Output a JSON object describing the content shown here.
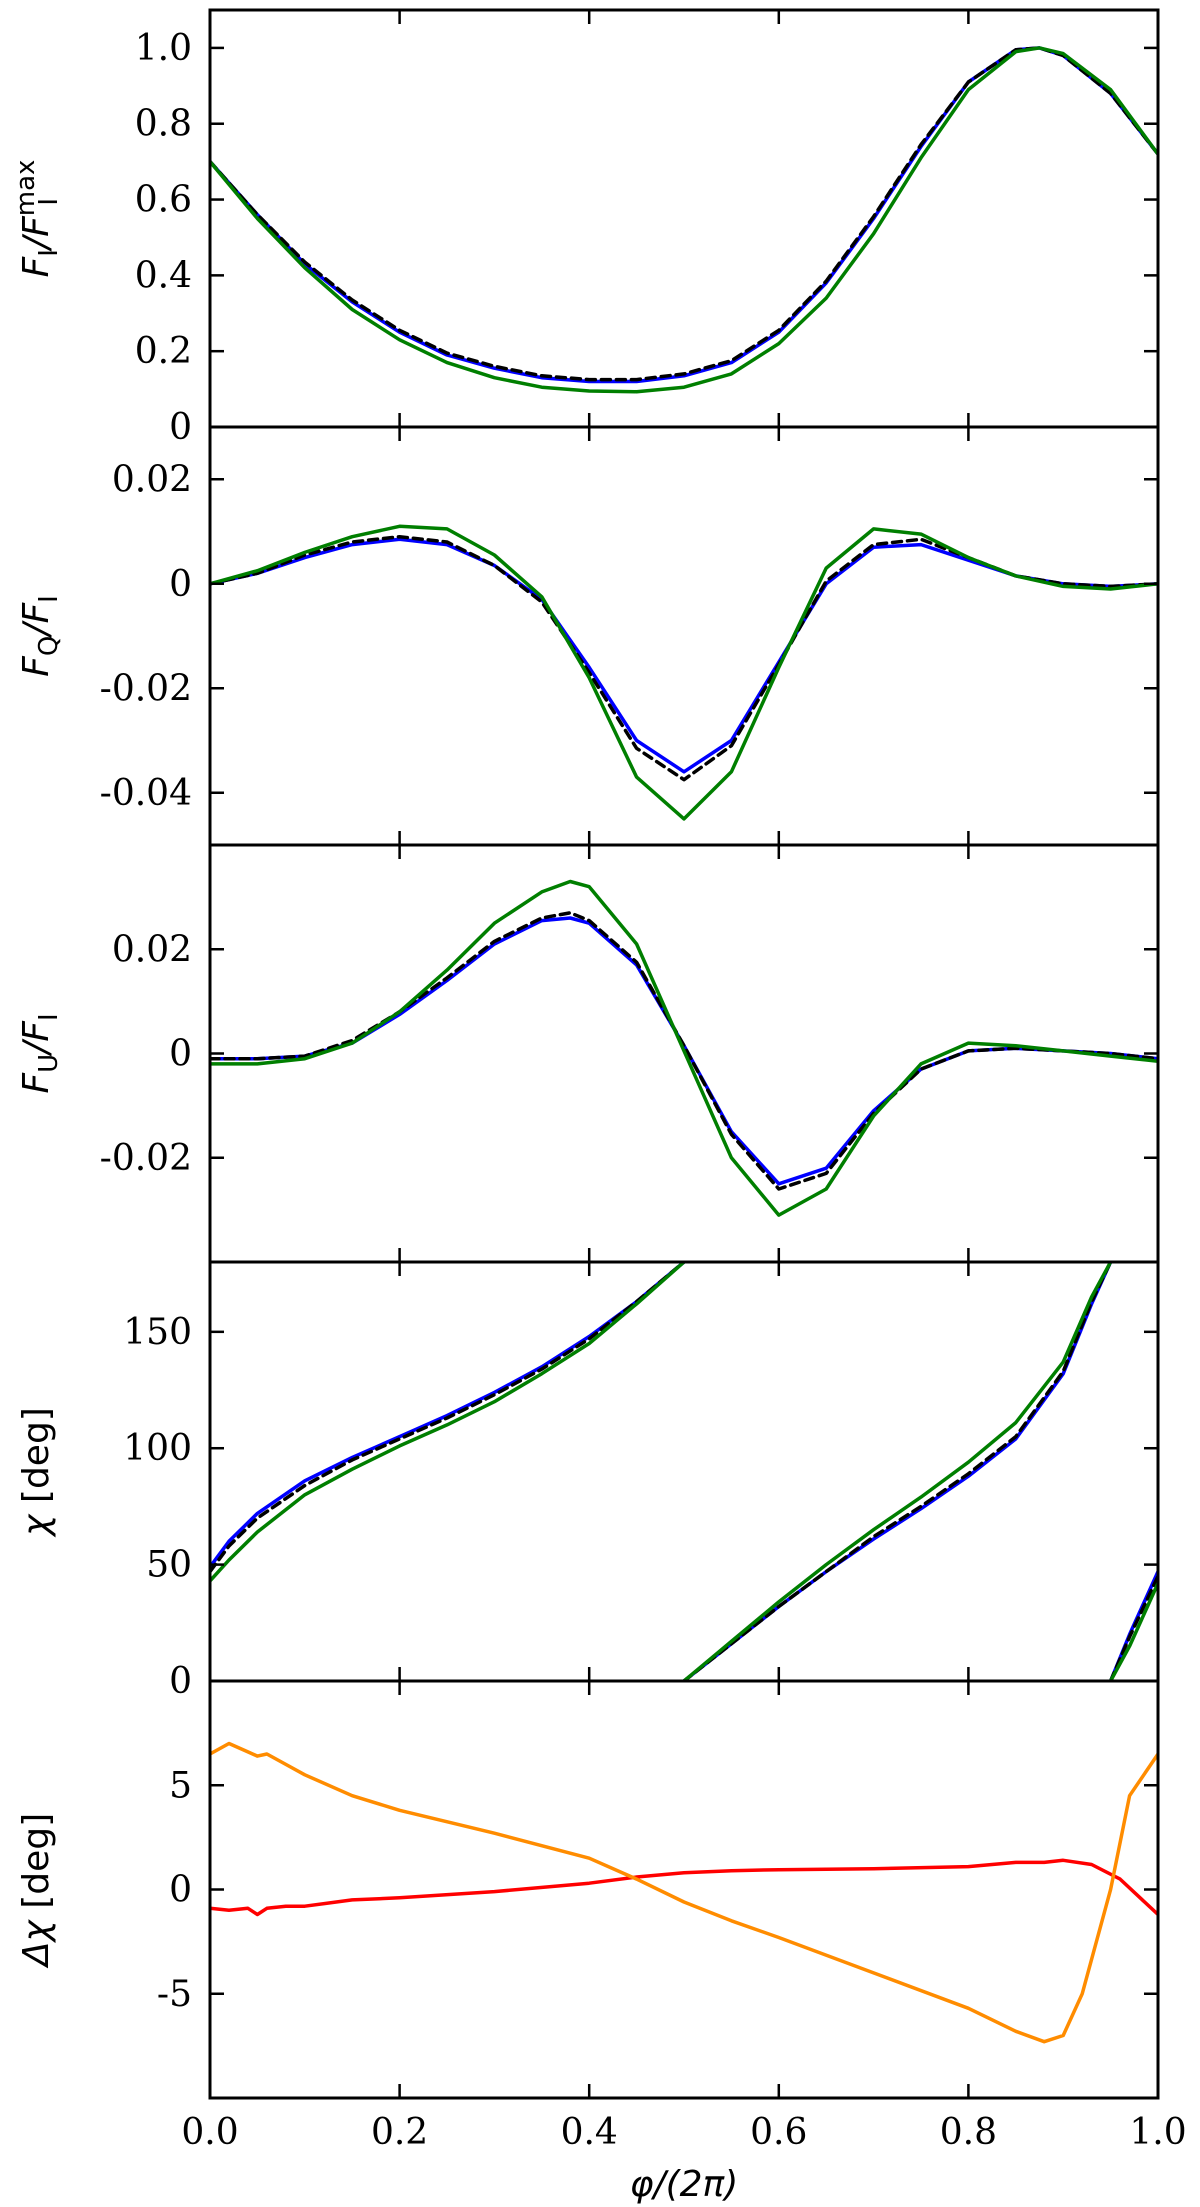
{
  "chart_data": {
    "type": "line",
    "shared_x": {
      "xlabel": "φ/(2π)",
      "xlim": [
        0,
        1
      ],
      "xticks": [
        0.0,
        0.2,
        0.4,
        0.6,
        0.8,
        1.0
      ],
      "xtick_labels": [
        "0.0",
        "0.2",
        "0.4",
        "0.6",
        "0.8",
        "1.0"
      ]
    },
    "panels": [
      {
        "id": "flux",
        "ylabel": {
          "pre": "F",
          "sub": "I",
          "mid": "/F",
          "sub2": "I",
          "sup": "max"
        },
        "ylim": [
          0,
          1.1
        ],
        "yticks": [
          0,
          0.2,
          0.4,
          0.6,
          0.8,
          1.0
        ],
        "ytick_labels": [
          "0",
          "0.2",
          "0.4",
          "0.6",
          "0.8",
          "1.0"
        ],
        "series": [
          {
            "color": "#0000ff",
            "style": "solid",
            "x": [
              0,
              0.05,
              0.1,
              0.15,
              0.2,
              0.25,
              0.3,
              0.35,
              0.4,
              0.45,
              0.5,
              0.55,
              0.6,
              0.65,
              0.7,
              0.75,
              0.8,
              0.85,
              0.875,
              0.9,
              0.95,
              1.0
            ],
            "y": [
              0.7,
              0.56,
              0.43,
              0.33,
              0.25,
              0.19,
              0.155,
              0.13,
              0.12,
              0.12,
              0.135,
              0.17,
              0.25,
              0.38,
              0.55,
              0.74,
              0.91,
              0.995,
              1.0,
              0.98,
              0.88,
              0.72
            ]
          },
          {
            "color": "#000000",
            "style": "dashed",
            "x": [
              0,
              0.05,
              0.1,
              0.15,
              0.2,
              0.25,
              0.3,
              0.35,
              0.4,
              0.45,
              0.5,
              0.55,
              0.6,
              0.65,
              0.7,
              0.75,
              0.8,
              0.85,
              0.875,
              0.9,
              0.95,
              1.0
            ],
            "y": [
              0.7,
              0.56,
              0.435,
              0.335,
              0.255,
              0.195,
              0.16,
              0.135,
              0.125,
              0.125,
              0.14,
              0.175,
              0.255,
              0.385,
              0.555,
              0.745,
              0.91,
              0.995,
              1.0,
              0.98,
              0.88,
              0.72
            ]
          },
          {
            "color": "#007f00",
            "style": "solid",
            "x": [
              0,
              0.05,
              0.1,
              0.15,
              0.2,
              0.25,
              0.3,
              0.35,
              0.4,
              0.45,
              0.5,
              0.55,
              0.6,
              0.65,
              0.7,
              0.75,
              0.8,
              0.85,
              0.875,
              0.9,
              0.95,
              1.0
            ],
            "y": [
              0.7,
              0.55,
              0.42,
              0.31,
              0.23,
              0.17,
              0.13,
              0.105,
              0.095,
              0.093,
              0.105,
              0.14,
              0.22,
              0.34,
              0.51,
              0.71,
              0.89,
              0.99,
              1.0,
              0.985,
              0.89,
              0.72
            ]
          }
        ]
      },
      {
        "id": "stokes-q",
        "ylabel": {
          "pre": "F",
          "sub": "Q",
          "mid": "/F",
          "sub2": "I",
          "sup": ""
        },
        "ylim": [
          -0.05,
          0.03
        ],
        "yticks": [
          -0.04,
          -0.02,
          0,
          0.02
        ],
        "ytick_labels": [
          "-0.04",
          "-0.02",
          "0",
          "0.02"
        ],
        "series": [
          {
            "color": "#0000ff",
            "style": "solid",
            "x": [
              0,
              0.05,
              0.1,
              0.15,
              0.2,
              0.25,
              0.3,
              0.35,
              0.4,
              0.45,
              0.5,
              0.55,
              0.6,
              0.65,
              0.7,
              0.75,
              0.8,
              0.85,
              0.9,
              0.95,
              1.0
            ],
            "y": [
              0,
              0.002,
              0.005,
              0.0075,
              0.0085,
              0.0075,
              0.0035,
              -0.003,
              -0.016,
              -0.03,
              -0.036,
              -0.03,
              -0.015,
              0.0,
              0.007,
              0.0075,
              0.0045,
              0.0015,
              0.0,
              -0.0005,
              0.0
            ]
          },
          {
            "color": "#000000",
            "style": "dashed",
            "x": [
              0,
              0.05,
              0.1,
              0.15,
              0.2,
              0.25,
              0.3,
              0.35,
              0.4,
              0.45,
              0.5,
              0.55,
              0.6,
              0.65,
              0.7,
              0.75,
              0.8,
              0.85,
              0.9,
              0.95,
              1.0
            ],
            "y": [
              0,
              0.002,
              0.0055,
              0.008,
              0.009,
              0.008,
              0.0035,
              -0.0035,
              -0.017,
              -0.0315,
              -0.0375,
              -0.031,
              -0.0155,
              0.0005,
              0.0075,
              0.0085,
              0.005,
              0.0015,
              0.0,
              -0.0005,
              0.0
            ]
          },
          {
            "color": "#007f00",
            "style": "solid",
            "x": [
              0,
              0.05,
              0.1,
              0.15,
              0.2,
              0.25,
              0.3,
              0.35,
              0.4,
              0.45,
              0.5,
              0.55,
              0.6,
              0.65,
              0.7,
              0.75,
              0.8,
              0.85,
              0.9,
              0.95,
              1.0
            ],
            "y": [
              0,
              0.0025,
              0.006,
              0.009,
              0.011,
              0.0105,
              0.0055,
              -0.0025,
              -0.018,
              -0.037,
              -0.045,
              -0.036,
              -0.016,
              0.003,
              0.0105,
              0.0095,
              0.005,
              0.0015,
              -0.0005,
              -0.001,
              0.0
            ]
          }
        ]
      },
      {
        "id": "stokes-u",
        "ylabel": {
          "pre": "F",
          "sub": "U",
          "mid": "/F",
          "sub2": "I",
          "sup": ""
        },
        "ylim": [
          -0.04,
          0.04
        ],
        "yticks": [
          -0.02,
          0,
          0.02
        ],
        "ytick_labels": [
          "-0.02",
          "0",
          "0.02"
        ],
        "series": [
          {
            "color": "#0000ff",
            "style": "solid",
            "x": [
              0,
              0.05,
              0.1,
              0.15,
              0.2,
              0.25,
              0.3,
              0.35,
              0.38,
              0.4,
              0.45,
              0.5,
              0.55,
              0.6,
              0.65,
              0.7,
              0.75,
              0.8,
              0.85,
              0.9,
              0.95,
              1.0
            ],
            "y": [
              -0.001,
              -0.001,
              -0.0005,
              0.002,
              0.0075,
              0.014,
              0.021,
              0.0255,
              0.026,
              0.025,
              0.017,
              0.0015,
              -0.015,
              -0.025,
              -0.022,
              -0.011,
              -0.003,
              0.0005,
              0.001,
              0.0005,
              0.0,
              -0.001
            ]
          },
          {
            "color": "#000000",
            "style": "dashed",
            "x": [
              0,
              0.05,
              0.1,
              0.15,
              0.2,
              0.25,
              0.3,
              0.35,
              0.38,
              0.4,
              0.45,
              0.5,
              0.55,
              0.6,
              0.65,
              0.7,
              0.75,
              0.8,
              0.85,
              0.9,
              0.95,
              1.0
            ],
            "y": [
              -0.001,
              -0.001,
              -0.0005,
              0.0025,
              0.008,
              0.0145,
              0.0215,
              0.026,
              0.027,
              0.0255,
              0.0175,
              0.0015,
              -0.0155,
              -0.026,
              -0.023,
              -0.0115,
              -0.003,
              0.0005,
              0.001,
              0.0005,
              0.0,
              -0.001
            ]
          },
          {
            "color": "#007f00",
            "style": "solid",
            "x": [
              0,
              0.05,
              0.1,
              0.15,
              0.2,
              0.25,
              0.3,
              0.35,
              0.38,
              0.4,
              0.45,
              0.5,
              0.55,
              0.6,
              0.65,
              0.7,
              0.75,
              0.8,
              0.85,
              0.9,
              0.95,
              1.0
            ],
            "y": [
              -0.002,
              -0.002,
              -0.001,
              0.002,
              0.008,
              0.016,
              0.025,
              0.031,
              0.033,
              0.032,
              0.021,
              0.0005,
              -0.02,
              -0.031,
              -0.026,
              -0.012,
              -0.002,
              0.002,
              0.0015,
              0.0005,
              -0.0005,
              -0.0015
            ]
          }
        ]
      },
      {
        "id": "pol-angle",
        "ylabel": {
          "greek": "χ",
          "unit": " [deg]"
        },
        "ylim": [
          0,
          180
        ],
        "yticks": [
          0,
          50,
          100,
          150
        ],
        "ytick_labels": [
          "0",
          "50",
          "100",
          "150"
        ],
        "series": [
          {
            "color": "#0000ff",
            "style": "solid",
            "segments": [
              {
                "x": [
                  0,
                  0.02,
                  0.05,
                  0.1,
                  0.15,
                  0.2,
                  0.25,
                  0.3,
                  0.35,
                  0.4,
                  0.45,
                  0.5
                ],
                "y": [
                  49,
                  60,
                  72,
                  86,
                  96,
                  105,
                  114,
                  124,
                  135,
                  148,
                  163,
                  180
                ]
              },
              {
                "x": [
                  0.5,
                  0.55,
                  0.6,
                  0.65,
                  0.7,
                  0.75,
                  0.8,
                  0.85,
                  0.9,
                  0.93,
                  0.95
                ],
                "y": [
                  0,
                  16,
                  32,
                  47,
                  61,
                  74,
                  88,
                  104,
                  132,
                  162,
                  180
                ]
              },
              {
                "x": [
                  0.95,
                  0.97,
                  1.0
                ],
                "y": [
                  0,
                  20,
                  47
                ]
              }
            ]
          },
          {
            "color": "#000000",
            "style": "dashed",
            "segments": [
              {
                "x": [
                  0,
                  0.02,
                  0.05,
                  0.1,
                  0.15,
                  0.2,
                  0.25,
                  0.3,
                  0.35,
                  0.4,
                  0.45,
                  0.5
                ],
                "y": [
                  47,
                  58,
                  70,
                  84,
                  95,
                  104,
                  113,
                  123,
                  134,
                  147,
                  163,
                  180
                ]
              },
              {
                "x": [
                  0.5,
                  0.55,
                  0.6,
                  0.65,
                  0.7,
                  0.75,
                  0.8,
                  0.85,
                  0.9,
                  0.93,
                  0.95
                ],
                "y": [
                  0,
                  16,
                  32,
                  47,
                  62,
                  75,
                  89,
                  105,
                  133,
                  163,
                  180
                ]
              },
              {
                "x": [
                  0.95,
                  0.97,
                  1.0
                ],
                "y": [
                  0,
                  19,
                  45
                ]
              }
            ]
          },
          {
            "color": "#007f00",
            "style": "solid",
            "segments": [
              {
                "x": [
                  0,
                  0.02,
                  0.05,
                  0.1,
                  0.15,
                  0.2,
                  0.25,
                  0.3,
                  0.35,
                  0.4,
                  0.45,
                  0.5
                ],
                "y": [
                  43,
                  52,
                  64,
                  80,
                  91,
                  101,
                  110,
                  120,
                  132,
                  145,
                  162,
                  180
                ]
              },
              {
                "x": [
                  0.5,
                  0.55,
                  0.6,
                  0.65,
                  0.7,
                  0.75,
                  0.8,
                  0.85,
                  0.9,
                  0.93,
                  0.95
                ],
                "y": [
                  0,
                  17,
                  34,
                  50,
                  65,
                  79,
                  94,
                  111,
                  137,
                  165,
                  180
                ]
              },
              {
                "x": [
                  0.95,
                  0.97,
                  1.0
                ],
                "y": [
                  0,
                  15,
                  42
                ]
              }
            ]
          }
        ]
      },
      {
        "id": "delta-angle",
        "ylabel": {
          "greek": "Δχ",
          "unit": " [deg]"
        },
        "ylim": [
          -10,
          10
        ],
        "yticks": [
          -5,
          0,
          5
        ],
        "ytick_labels": [
          "-5",
          "0",
          "5"
        ],
        "series": [
          {
            "color": "#ff0000",
            "style": "solid",
            "x": [
              0,
              0.02,
              0.04,
              0.05,
              0.06,
              0.08,
              0.1,
              0.15,
              0.2,
              0.3,
              0.4,
              0.45,
              0.5,
              0.55,
              0.6,
              0.7,
              0.8,
              0.85,
              0.88,
              0.9,
              0.93,
              0.96,
              1.0
            ],
            "y": [
              -0.9,
              -1.0,
              -0.9,
              -1.2,
              -0.9,
              -0.8,
              -0.8,
              -0.5,
              -0.4,
              -0.1,
              0.3,
              0.6,
              0.8,
              0.9,
              0.95,
              1.0,
              1.1,
              1.3,
              1.3,
              1.4,
              1.2,
              0.5,
              -1.2
            ]
          },
          {
            "color": "#ff8c00",
            "style": "solid",
            "x": [
              0,
              0.02,
              0.04,
              0.05,
              0.06,
              0.08,
              0.1,
              0.15,
              0.2,
              0.3,
              0.4,
              0.45,
              0.5,
              0.55,
              0.6,
              0.7,
              0.8,
              0.85,
              0.88,
              0.9,
              0.92,
              0.95,
              0.97,
              1.0
            ],
            "y": [
              6.5,
              7.0,
              6.6,
              6.4,
              6.5,
              6.0,
              5.5,
              4.5,
              3.8,
              2.7,
              1.5,
              0.5,
              -0.6,
              -1.5,
              -2.3,
              -4.0,
              -5.7,
              -6.8,
              -7.3,
              -7.0,
              -5.0,
              0.0,
              4.5,
              6.5
            ]
          }
        ]
      }
    ]
  }
}
